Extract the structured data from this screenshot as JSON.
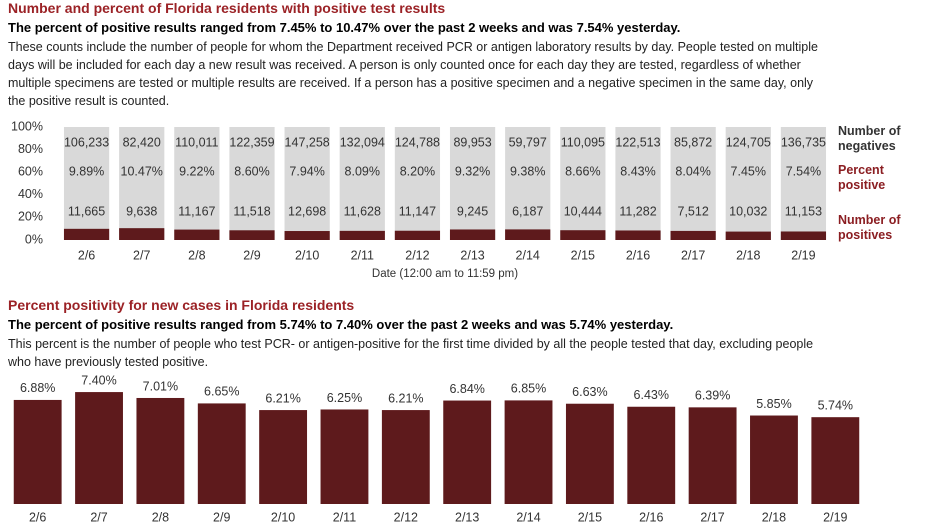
{
  "chart_data": [
    {
      "type": "bar",
      "title": "Number and percent of Florida residents with positive test results",
      "subtitle": "The percent of positive results ranged from 7.45% to 10.47% over the past 2 weeks and was 7.54% yesterday.",
      "description": "These counts include the number of people for whom the Department received PCR or antigen laboratory results by day. People tested on multiple days will be included for each day a new result was received. A person is only counted once for each day they are tested, regardless of whether multiple specimens are tested or multiple results are received. If a person has a positive specimen and a negative specimen in the same day, only the positive result is counted.",
      "x_label": "Date (12:00 am to 11:59 pm)",
      "categories": [
        "2/6",
        "2/7",
        "2/8",
        "2/9",
        "2/10",
        "2/11",
        "2/12",
        "2/13",
        "2/14",
        "2/15",
        "2/16",
        "2/17",
        "2/18",
        "2/19"
      ],
      "ylim": [
        0,
        100
      ],
      "yticks": [
        {
          "value": 0,
          "label": "0%"
        },
        {
          "value": 20,
          "label": "20%"
        },
        {
          "value": 40,
          "label": "40%"
        },
        {
          "value": 60,
          "label": "60%"
        },
        {
          "value": 80,
          "label": "80%"
        },
        {
          "value": 100,
          "label": "100%"
        }
      ],
      "series": [
        {
          "name": "Number of negatives",
          "color": "#d9d9d9",
          "values": [
            106233,
            82420,
            110011,
            122359,
            147258,
            132094,
            124788,
            89953,
            59797,
            110095,
            122513,
            85872,
            124705,
            136735
          ],
          "value_labels": [
            "106,233",
            "82,420",
            "110,011",
            "122,359",
            "147,258",
            "132,094",
            "124,788",
            "89,953",
            "59,797",
            "110,095",
            "122,513",
            "85,872",
            "124,705",
            "136,735"
          ]
        },
        {
          "name": "Percent positive",
          "color": "#5e1a1c",
          "values": [
            9.89,
            10.47,
            9.22,
            8.6,
            7.94,
            8.09,
            8.2,
            9.32,
            9.38,
            8.66,
            8.43,
            8.04,
            7.45,
            7.54
          ],
          "value_labels": [
            "9.89%",
            "10.47%",
            "9.22%",
            "8.60%",
            "7.94%",
            "8.09%",
            "8.20%",
            "9.32%",
            "9.38%",
            "8.66%",
            "8.43%",
            "8.04%",
            "7.45%",
            "7.54%"
          ]
        },
        {
          "name": "Number of positives",
          "color": "#8b1e22",
          "values": [
            11665,
            9638,
            11167,
            11518,
            12698,
            11628,
            11147,
            9245,
            6187,
            10444,
            11282,
            7512,
            10032,
            11153
          ],
          "value_labels": [
            "11,665",
            "9,638",
            "11,167",
            "11,518",
            "12,698",
            "11,628",
            "11,147",
            "9,245",
            "6,187",
            "10,444",
            "11,282",
            "7,512",
            "10,032",
            "11,153"
          ]
        }
      ]
    },
    {
      "type": "bar",
      "title": "Percent positivity for new cases in Florida residents",
      "subtitle": "The percent of positive results ranged from 5.74% to 7.40% over the past 2 weeks and was 5.74% yesterday.",
      "description": "This percent is the number of people who test PCR- or antigen-positive for the first time divided by all the people tested that day, excluding people who have previously tested positive.",
      "categories": [
        "2/6",
        "2/7",
        "2/8",
        "2/9",
        "2/10",
        "2/11",
        "2/12",
        "2/13",
        "2/14",
        "2/15",
        "2/16",
        "2/17",
        "2/18",
        "2/19"
      ],
      "values": [
        6.88,
        7.4,
        7.01,
        6.65,
        6.21,
        6.25,
        6.21,
        6.84,
        6.85,
        6.63,
        6.43,
        6.39,
        5.85,
        5.74
      ],
      "value_labels": [
        "6.88%",
        "7.40%",
        "7.01%",
        "6.65%",
        "6.21%",
        "6.25%",
        "6.21%",
        "6.84%",
        "6.85%",
        "6.63%",
        "6.43%",
        "6.39%",
        "5.85%",
        "5.74%"
      ],
      "color": "#5e1a1c",
      "ylim": [
        0,
        8
      ]
    }
  ]
}
